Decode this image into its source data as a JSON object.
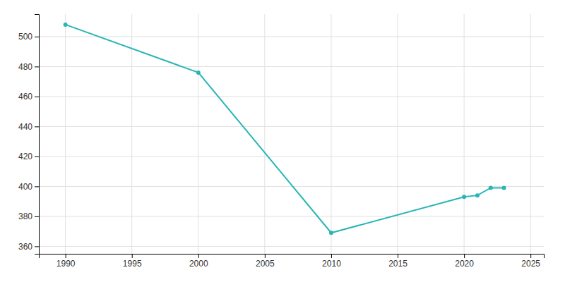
{
  "chart_data": {
    "type": "line",
    "x": [
      1990,
      2000,
      2010,
      2020,
      2021,
      2022,
      2023
    ],
    "values": [
      508,
      476,
      369,
      393,
      394,
      399,
      399
    ],
    "color": "#2ab5b5",
    "marker": "circle",
    "xlim": [
      1988,
      2026
    ],
    "ylim": [
      355,
      515
    ],
    "xticks": [
      1990,
      1995,
      2000,
      2005,
      2010,
      2015,
      2020,
      2025
    ],
    "yticks": [
      360,
      380,
      400,
      420,
      440,
      460,
      480,
      500
    ],
    "grid": true
  }
}
